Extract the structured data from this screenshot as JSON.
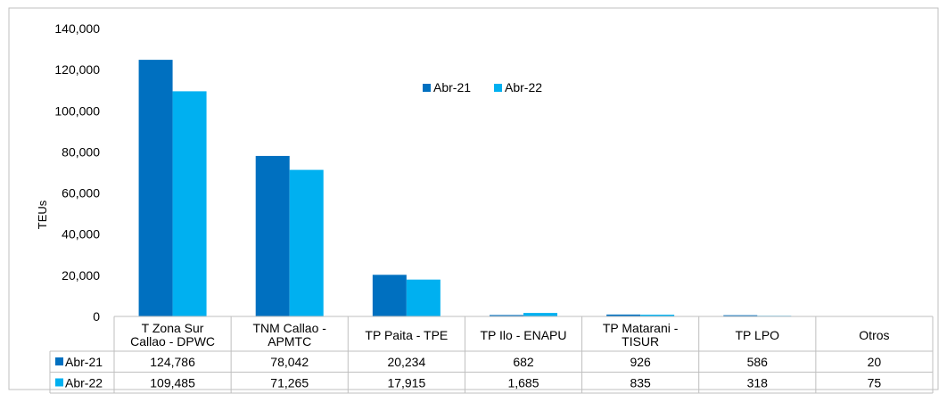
{
  "chart_data": {
    "type": "bar",
    "ylabel": "TEUs",
    "ylim": [
      0,
      140000
    ],
    "yticks": [
      "0",
      "20,000",
      "40,000",
      "60,000",
      "80,000",
      "100,000",
      "120,000",
      "140,000"
    ],
    "grid": false,
    "legend_position": "top-center",
    "categories": [
      [
        "T Zona Sur",
        "Callao - DPWC"
      ],
      [
        "TNM Callao -",
        "APMTC"
      ],
      [
        "TP Paita - TPE"
      ],
      [
        "TP Ilo - ENAPU"
      ],
      [
        "TP Matarani -",
        "TISUR"
      ],
      [
        "TP LPO"
      ],
      [
        "Otros"
      ]
    ],
    "series": [
      {
        "name": "Abr-21",
        "color": "#0070C0",
        "values": [
          124786,
          78042,
          20234,
          682,
          926,
          586,
          20
        ],
        "labels": [
          "124,786",
          "78,042",
          "20,234",
          "682",
          "926",
          "586",
          "20"
        ]
      },
      {
        "name": "Abr-22",
        "color": "#00B0F0",
        "values": [
          109485,
          71265,
          17915,
          1685,
          835,
          318,
          75
        ],
        "labels": [
          "109,485",
          "71,265",
          "17,915",
          "1,685",
          "835",
          "318",
          "75"
        ]
      }
    ]
  }
}
